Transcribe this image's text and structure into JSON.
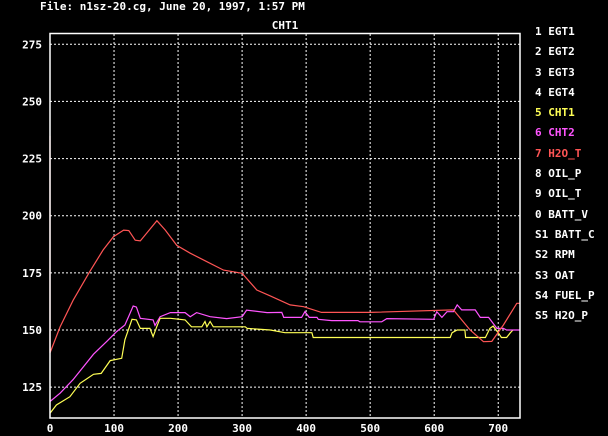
{
  "header": {
    "file_title": "File: n1sz-20.cg, June 20, 1997, 1:57 PM"
  },
  "chart_data": {
    "type": "line",
    "title": "CHT1",
    "xlabel": "",
    "ylabel": "",
    "xlim": [
      0,
      734
    ],
    "ylim": [
      111.5,
      279.5
    ],
    "grid": true,
    "legend_placement": "right",
    "x_ticks": [
      "0",
      "100",
      "200",
      "300",
      "400",
      "500",
      "600",
      "700"
    ],
    "x_tick_values": [
      0,
      100,
      200,
      300,
      400,
      500,
      600,
      700
    ],
    "y_ticks": [
      "125",
      "150",
      "175",
      "200",
      "225",
      "250",
      "275"
    ],
    "y_tick_values": [
      125,
      150,
      175,
      200,
      225,
      250,
      275
    ],
    "legend": [
      {
        "label": "1 EGT1",
        "color": "#ffffff"
      },
      {
        "label": "2 EGT2",
        "color": "#ffffff"
      },
      {
        "label": "3 EGT3",
        "color": "#ffffff"
      },
      {
        "label": "4 EGT4",
        "color": "#ffffff"
      },
      {
        "label": "5 CHT1",
        "color": "#ffff55"
      },
      {
        "label": "6 CHT2",
        "color": "#ff55ff"
      },
      {
        "label": "7 H2O_T",
        "color": "#ff5555"
      },
      {
        "label": "8 OIL_P",
        "color": "#ffffff"
      },
      {
        "label": "9 OIL_T",
        "color": "#ffffff"
      },
      {
        "label": "0 BATT_V",
        "color": "#ffffff"
      },
      {
        "label": "S1 BATT_C",
        "color": "#ffffff"
      },
      {
        "label": "S2 RPM",
        "color": "#ffffff"
      },
      {
        "label": "S3 OAT",
        "color": "#ffffff"
      },
      {
        "label": "S4 FUEL_P",
        "color": "#ffffff"
      },
      {
        "label": "S5 H2O_P",
        "color": "#ffffff"
      }
    ],
    "series": [
      {
        "name": "5 CHT1",
        "color": "#ffff55",
        "points": [
          [
            0,
            113.6
          ],
          [
            10,
            117.2
          ],
          [
            31,
            120.8
          ],
          [
            47,
            126.7
          ],
          [
            68,
            130.6
          ],
          [
            80,
            131
          ],
          [
            94,
            136.6
          ],
          [
            112,
            137.6
          ],
          [
            117,
            145.7
          ],
          [
            128,
            154.7
          ],
          [
            135,
            154.4
          ],
          [
            141,
            150.7
          ],
          [
            156,
            150.7
          ],
          [
            161,
            147.1
          ],
          [
            167,
            151.6
          ],
          [
            172,
            155.1
          ],
          [
            188,
            155.1
          ],
          [
            211,
            154.4
          ],
          [
            221,
            151.4
          ],
          [
            237,
            151.4
          ],
          [
            242,
            153.7
          ],
          [
            245,
            151.4
          ],
          [
            250,
            153.7
          ],
          [
            255,
            151.4
          ],
          [
            305,
            151.4
          ],
          [
            308,
            150.7
          ],
          [
            344,
            150
          ],
          [
            367,
            148.8
          ],
          [
            409,
            148.8
          ],
          [
            411,
            146.7
          ],
          [
            625,
            146.7
          ],
          [
            628,
            148.8
          ],
          [
            636,
            150
          ],
          [
            648,
            150
          ],
          [
            649,
            146.7
          ],
          [
            680,
            146.7
          ],
          [
            687,
            150.7
          ],
          [
            692,
            151.7
          ],
          [
            700,
            148.8
          ],
          [
            705,
            146.7
          ],
          [
            713,
            146.7
          ],
          [
            719,
            148.8
          ],
          [
            723,
            150
          ]
        ]
      },
      {
        "name": "6 CHT2",
        "color": "#ff55ff",
        "points": [
          [
            0,
            118.7
          ],
          [
            16,
            122.4
          ],
          [
            36,
            128.3
          ],
          [
            68,
            139.4
          ],
          [
            89,
            145.1
          ],
          [
            104,
            149.3
          ],
          [
            117,
            152.2
          ],
          [
            130,
            160.5
          ],
          [
            135,
            160
          ],
          [
            141,
            155.1
          ],
          [
            161,
            154.4
          ],
          [
            164,
            152
          ],
          [
            172,
            155.8
          ],
          [
            188,
            157.6
          ],
          [
            211,
            157.6
          ],
          [
            219,
            155.8
          ],
          [
            229,
            157.6
          ],
          [
            250,
            155.8
          ],
          [
            276,
            155
          ],
          [
            300,
            155.8
          ],
          [
            307,
            158.7
          ],
          [
            339,
            157.6
          ],
          [
            362,
            157.7
          ],
          [
            365,
            155.5
          ],
          [
            393,
            155.5
          ],
          [
            398,
            158
          ],
          [
            405,
            155.5
          ],
          [
            417,
            155.5
          ],
          [
            419,
            154.7
          ],
          [
            440,
            154.1
          ],
          [
            481,
            154.1
          ],
          [
            484,
            153.6
          ],
          [
            518,
            153.6
          ],
          [
            526,
            155
          ],
          [
            599,
            154.7
          ],
          [
            604,
            158
          ],
          [
            612,
            155.5
          ],
          [
            620,
            158
          ],
          [
            630,
            158
          ],
          [
            636,
            161
          ],
          [
            643,
            158.8
          ],
          [
            664,
            158.8
          ],
          [
            672,
            155.5
          ],
          [
            685,
            155.5
          ],
          [
            698,
            150.7
          ],
          [
            708,
            150.7
          ],
          [
            713,
            150
          ],
          [
            734,
            150
          ]
        ]
      },
      {
        "name": "7 H2O_T",
        "color": "#ff5555",
        "points": [
          [
            0,
            235
          ],
          [
            0,
            140
          ],
          [
            16,
            151.5
          ],
          [
            36,
            163
          ],
          [
            62,
            175.5
          ],
          [
            83,
            185
          ],
          [
            99,
            190.8
          ],
          [
            115,
            193.7
          ],
          [
            123,
            193.5
          ],
          [
            133,
            189.3
          ],
          [
            141,
            189
          ],
          [
            151,
            192.4
          ],
          [
            167,
            197.8
          ],
          [
            180,
            193.7
          ],
          [
            198,
            187
          ],
          [
            219,
            183.6
          ],
          [
            245,
            179.9
          ],
          [
            271,
            176.2
          ],
          [
            300,
            174.8
          ],
          [
            323,
            167.5
          ],
          [
            344,
            164.9
          ],
          [
            375,
            161
          ],
          [
            396,
            160.2
          ],
          [
            424,
            157.7
          ],
          [
            500,
            157.7
          ],
          [
            630,
            158.8
          ],
          [
            656,
            150
          ],
          [
            677,
            144.9
          ],
          [
            690,
            145
          ],
          [
            708,
            152.2
          ],
          [
            729,
            161.7
          ],
          [
            734,
            161.7
          ]
        ]
      }
    ]
  }
}
